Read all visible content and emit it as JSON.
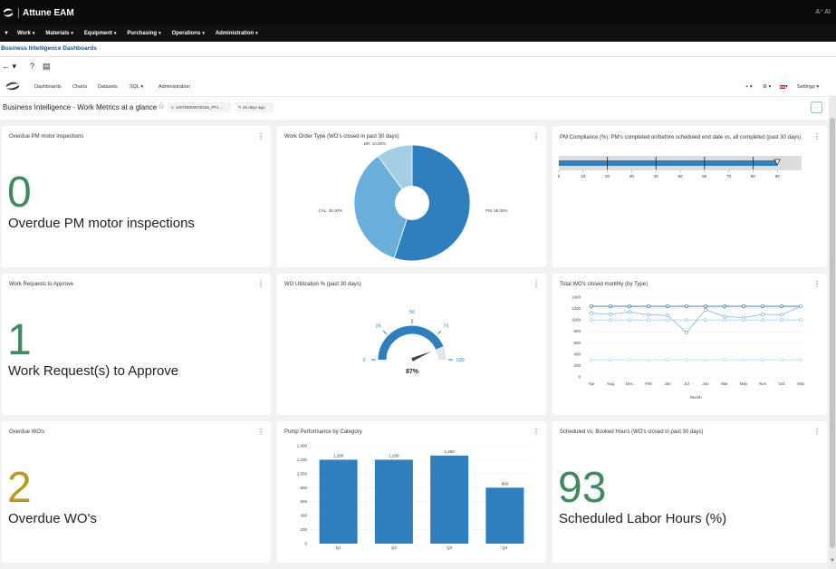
{
  "app": {
    "title": "Attune EAM",
    "ai_badge": "A⁺ AI"
  },
  "nav": {
    "menu_glyph": "▼",
    "items": [
      "Work",
      "Materials",
      "Equipment",
      "Purchasing",
      "Operations",
      "Administration"
    ],
    "caret": "▾"
  },
  "breadcrumb": "Business Intelligence Dashboards",
  "toolbar": {
    "back": "← ▾",
    "help": "?",
    "book": "▤"
  },
  "superset": {
    "menu": [
      "Dashboards",
      "Charts",
      "Datasets",
      "SQL ▾",
      "Administration"
    ],
    "right": {
      "plus": "+ ▾",
      "gear": "⚙ ▾",
      "flag": "▾",
      "settings": "Settings ▾"
    }
  },
  "dashboard": {
    "title": "Business Intelligence - Work Metrics at a glance",
    "star": "☆",
    "owner": "☺ 10/ONDEWO9345_PF1 ...",
    "edited": "✎ 25 days ago",
    "more": "..."
  },
  "kebab": "⋮",
  "cards": {
    "overdue_pm": {
      "title": "Overdue PM motor inspections",
      "value": "0",
      "label": "Overdue PM motor inspections",
      "color": "#3f8a5e"
    },
    "wo_type": {
      "title": "Work Order Type (WO's closed in past 30 days)"
    },
    "pm_compliance": {
      "title": "PM Compliance (%): PM's completed on/before scheduled end date vs. all completed (past 30 days)"
    },
    "work_requests": {
      "title": "Work Requests to Approve",
      "value": "1",
      "label": "Work Request(s) to Approve",
      "color": "#3f8a5e"
    },
    "wo_util": {
      "title": "WO Utilization % (past 30 days)"
    },
    "total_wo": {
      "title": "Total WO's closed monthly (by Type)"
    },
    "overdue_wo": {
      "title": "Overdue WO's",
      "value": "2",
      "label": "Overdue WO's",
      "color": "#b79a1e"
    },
    "pump": {
      "title": "Pump Performance by Category"
    },
    "sched_hours": {
      "title": "Scheduled vs. Booked Hours (WO's closed in past 30 days)",
      "value": "93",
      "label": "Scheduled Labor Hours (%)",
      "color": "#3f8a5e"
    }
  },
  "colors": {
    "accent": "#2f7fbf",
    "pie": [
      "#2f7fbf",
      "#6aaedb",
      "#a4cde6"
    ],
    "gauge": "#2f7fbf",
    "band": "#dcdcdc"
  },
  "chart_data": [
    {
      "type": "pie",
      "title": "Work Order Type (WO's closed in past 30 days)",
      "categories": [
        "PM",
        "CAL",
        "BR"
      ],
      "values": [
        55.0,
        35.0,
        10.0
      ],
      "labels": [
        "PM: 55.00%",
        "CAL: 35.00%",
        "BR: 10.00%"
      ],
      "donut": true
    },
    {
      "type": "bar",
      "subtype": "bullet",
      "title": "PM Compliance (%): PM's completed on/before scheduled end date vs. all completed (past 30 days)",
      "value": 90,
      "markers": [
        20,
        40,
        60,
        80
      ],
      "xlim": [
        0,
        100
      ],
      "ticks": [
        0,
        10,
        20,
        30,
        40,
        50,
        60,
        70,
        80,
        90
      ]
    },
    {
      "type": "gauge",
      "title": "WO Utilization % (past 30 days)",
      "value": 87,
      "value_label": "87%",
      "range": [
        0,
        100
      ],
      "ticks": [
        0,
        25,
        50,
        75,
        100
      ]
    },
    {
      "type": "line",
      "title": "Total WO's closed monthly (by Type)",
      "xlabel": "Month",
      "ylabel": "",
      "categories": [
        "Apr",
        "Aug",
        "Dec",
        "Feb",
        "Jan",
        "Jul",
        "Jun",
        "Mar",
        "May",
        "Nov",
        "Oct",
        "Sep"
      ],
      "ylim": [
        0,
        1400
      ],
      "yticks": [
        0,
        200,
        400,
        600,
        800,
        1000,
        1200,
        1400
      ],
      "series": [
        {
          "values": [
            1240,
            1240,
            1240,
            1240,
            1240,
            1240,
            1240,
            1240,
            1240,
            1240,
            1240,
            1240
          ]
        },
        {
          "values": [
            1120,
            1100,
            1140,
            1090,
            1080,
            780,
            1180,
            1060,
            1040,
            1100,
            1090,
            1240
          ]
        },
        {
          "values": [
            1000,
            1000,
            1000,
            1000,
            1000,
            1000,
            1000,
            1000,
            1000,
            1000,
            1000,
            1000
          ]
        },
        {
          "values": [
            300,
            300,
            300,
            300,
            300,
            300,
            300,
            300,
            300,
            300,
            300,
            300
          ]
        }
      ]
    },
    {
      "type": "bar",
      "title": "Pump Performance by Category",
      "categories": [
        "Q1",
        "Q2",
        "Q3",
        "Q4"
      ],
      "values": [
        1200,
        1200,
        1260,
        800
      ],
      "labels": [
        "1,200",
        "1,200",
        "1,260",
        "800"
      ],
      "ylim": [
        0,
        1400
      ],
      "yticks": [
        0,
        200,
        400,
        600,
        800,
        1000,
        1200,
        1400
      ],
      "ytick_labels": [
        "0",
        "200",
        "400",
        "600",
        "800",
        "1,000",
        "1,200",
        "1,400"
      ]
    }
  ]
}
